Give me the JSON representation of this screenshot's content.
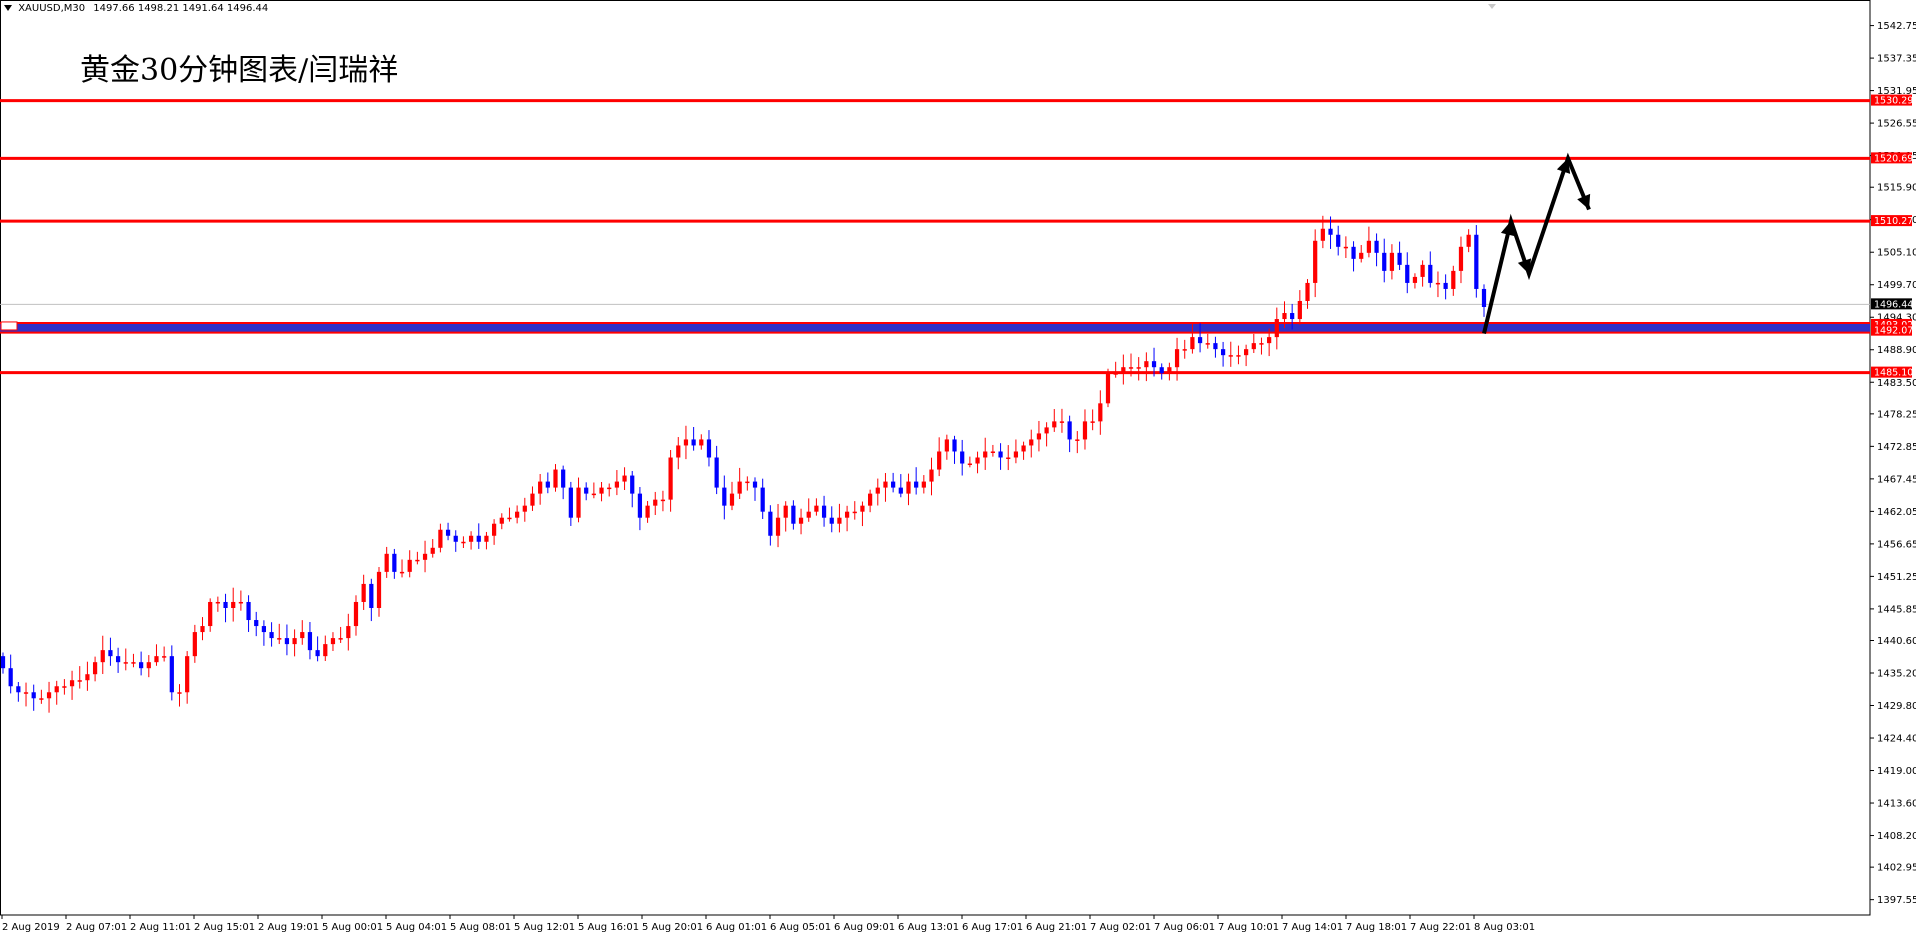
{
  "header": {
    "symbol": "XAUUSD,M30",
    "ohlc": "1497.66 1498.21 1491.64 1496.44"
  },
  "annotation": {
    "title": "黄金30分钟图表/闫瑞祥"
  },
  "colors": {
    "bull_candle": "#ff0000",
    "bear_candle": "#0000ff",
    "support_resistance_line": "#ff0000",
    "zone_line": "#3030c8",
    "current_price_line": "#c0c0c0",
    "forecast_arrow": "#000000"
  },
  "chart_data": {
    "type": "candlestick",
    "symbol": "XAUUSD",
    "timeframe": "M30",
    "ylim": [
      1395,
      1547
    ],
    "price_axis_ticks": [
      "1542.75",
      "1537.35",
      "1531.95",
      "1526.55",
      "1521.15",
      "1515.90",
      "1510.50",
      "1505.10",
      "1499.70",
      "1494.30",
      "1488.90",
      "1483.50",
      "1478.25",
      "1472.85",
      "1467.45",
      "1462.05",
      "1456.65",
      "1451.25",
      "1445.85",
      "1440.60",
      "1435.20",
      "1429.80",
      "1424.40",
      "1419.00",
      "1413.60",
      "1408.20",
      "1402.95",
      "1397.55"
    ],
    "time_axis_labels": [
      "2 Aug 2019",
      "2 Aug 07:01",
      "2 Aug 11:01",
      "2 Aug 15:01",
      "2 Aug 19:01",
      "5 Aug 00:01",
      "5 Aug 04:01",
      "5 Aug 08:01",
      "5 Aug 12:01",
      "5 Aug 16:01",
      "5 Aug 20:01",
      "6 Aug 01:01",
      "6 Aug 05:01",
      "6 Aug 09:01",
      "6 Aug 13:01",
      "6 Aug 17:01",
      "6 Aug 21:01",
      "7 Aug 02:01",
      "7 Aug 06:01",
      "7 Aug 10:01",
      "7 Aug 14:01",
      "7 Aug 18:01",
      "7 Aug 22:01",
      "8 Aug 03:01"
    ],
    "current_price": "1496.44",
    "horizontal_lines": [
      {
        "label": "1530.29",
        "value": 1530.29,
        "style": "red"
      },
      {
        "label": "1520.69",
        "value": 1520.69,
        "style": "red"
      },
      {
        "label": "1510.27",
        "value": 1510.27,
        "style": "red"
      },
      {
        "label": "1493.02",
        "value": 1493.02,
        "style": "zone"
      },
      {
        "label": "1492.07",
        "value": 1492.07,
        "style": "zone"
      },
      {
        "label": "1485.10",
        "value": 1485.1,
        "style": "red"
      }
    ],
    "closes": [
      1436,
      1433,
      1432,
      1432,
      1431,
      1431,
      1432,
      1433,
      1433,
      1434,
      1434,
      1435,
      1437,
      1439,
      1438,
      1437,
      1437,
      1437,
      1436,
      1437,
      1438,
      1438,
      1432,
      1432,
      1438,
      1442,
      1443,
      1447,
      1447,
      1446,
      1447,
      1447,
      1444,
      1443,
      1442,
      1441,
      1441,
      1440,
      1441,
      1442,
      1439,
      1438,
      1440,
      1441,
      1441,
      1443,
      1447,
      1450,
      1446,
      1452,
      1455,
      1452,
      1452,
      1454,
      1454,
      1455,
      1456,
      1459,
      1458,
      1457,
      1457,
      1458,
      1457,
      1458,
      1460,
      1461,
      1461,
      1462,
      1463,
      1465,
      1467,
      1466,
      1469,
      1466,
      1461,
      1466,
      1465,
      1465,
      1466,
      1466,
      1467,
      1468,
      1465,
      1461,
      1463,
      1464,
      1464,
      1471,
      1473,
      1474,
      1473,
      1474,
      1471,
      1466,
      1463,
      1465,
      1467,
      1467,
      1466,
      1462,
      1458,
      1461,
      1463,
      1460,
      1461,
      1462,
      1463,
      1461,
      1460,
      1461,
      1462,
      1462,
      1463,
      1465,
      1466,
      1467,
      1466,
      1465,
      1467,
      1466,
      1467,
      1469,
      1472,
      1474,
      1472,
      1470,
      1470,
      1471,
      1472,
      1472,
      1471,
      1471,
      1472,
      1473,
      1474,
      1475,
      1476,
      1477,
      1477,
      1474,
      1474,
      1477,
      1477,
      1480,
      1485,
      1485,
      1486,
      1486,
      1486,
      1487,
      1486,
      1485,
      1486,
      1489,
      1489,
      1491,
      1490,
      1490,
      1489,
      1488,
      1488,
      1488,
      1489,
      1490,
      1490,
      1491,
      1494,
      1495,
      1494,
      1497,
      1500,
      1507,
      1509,
      1508,
      1506,
      1506,
      1504,
      1505,
      1507,
      1505,
      1502,
      1505,
      1503,
      1500,
      1501,
      1503,
      1500,
      1500,
      1499,
      1502,
      1506,
      1508,
      1499,
      1496
    ]
  }
}
